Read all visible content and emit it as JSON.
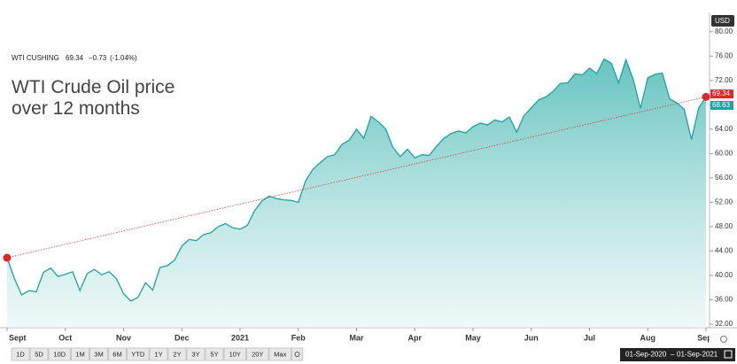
{
  "chart_data": {
    "type": "area",
    "title": "WTI Crude Oil price over 12 months",
    "instrument": "WTI CUSHING",
    "last": "69.34",
    "change": "−0.73",
    "change_pct": "(-1.04%)",
    "currency": "USD",
    "color": "#1aa3a0",
    "categories": [
      "Sept",
      null,
      null,
      null,
      null,
      null,
      null,
      null,
      "Oct",
      null,
      null,
      null,
      null,
      null,
      null,
      null,
      "Nov",
      null,
      null,
      null,
      null,
      null,
      null,
      null,
      "Dec",
      null,
      null,
      null,
      null,
      null,
      null,
      null,
      "2021",
      null,
      null,
      null,
      null,
      null,
      null,
      null,
      "Feb",
      null,
      null,
      null,
      null,
      null,
      null,
      null,
      "Mar",
      null,
      null,
      null,
      null,
      null,
      null,
      null,
      "Apr",
      null,
      null,
      null,
      null,
      null,
      null,
      null,
      "May",
      null,
      null,
      null,
      null,
      null,
      null,
      null,
      "Jun",
      null,
      null,
      null,
      null,
      null,
      null,
      null,
      "Jul",
      null,
      null,
      null,
      null,
      null,
      null,
      null,
      "Aug",
      null,
      null,
      null,
      null,
      null,
      null,
      null,
      "Sept"
    ],
    "values": [
      42.9,
      39.5,
      36.8,
      37.5,
      37.3,
      40.5,
      41.2,
      39.8,
      40.2,
      40.6,
      37.5,
      40.3,
      41.0,
      40.1,
      40.6,
      39.5,
      37.0,
      35.8,
      36.4,
      38.8,
      37.6,
      41.3,
      41.6,
      42.5,
      44.8,
      45.9,
      45.7,
      46.7,
      47.0,
      48.0,
      48.5,
      47.8,
      47.6,
      48.2,
      50.6,
      52.2,
      53.0,
      52.6,
      52.4,
      52.3,
      52.0,
      55.5,
      57.4,
      58.5,
      59.5,
      59.8,
      61.5,
      62.2,
      64.0,
      62.5,
      66.1,
      65.2,
      64.0,
      61.0,
      59.5,
      60.7,
      59.3,
      59.8,
      59.7,
      61.2,
      62.5,
      63.3,
      63.7,
      63.4,
      64.4,
      65.0,
      64.7,
      65.5,
      65.2,
      66.0,
      63.5,
      66.2,
      67.5,
      68.8,
      69.3,
      70.2,
      71.5,
      71.6,
      73.1,
      72.9,
      74.0,
      73.1,
      75.5,
      74.8,
      71.6,
      75.4,
      72.2,
      67.4,
      72.4,
      73.0,
      73.2,
      69.0,
      68.3,
      67.3,
      62.3,
      67.5,
      69.3
    ],
    "ylim": [
      32,
      82
    ],
    "yticks": [
      {
        "value": 32,
        "label": "32.00"
      },
      {
        "value": 36,
        "label": "36.00"
      },
      {
        "value": 40,
        "label": "40.00"
      },
      {
        "value": 44,
        "label": "44.00"
      },
      {
        "value": 48,
        "label": "48.00"
      },
      {
        "value": 52,
        "label": "52.00"
      },
      {
        "value": 56,
        "label": "56.00"
      },
      {
        "value": 60,
        "label": "60.00"
      },
      {
        "value": 64,
        "label": "64.00"
      },
      {
        "value": 68,
        "label": "68.00"
      },
      {
        "value": 72,
        "label": "72.00"
      },
      {
        "value": 76,
        "label": "76.00"
      },
      {
        "value": 80,
        "label": "80.00"
      }
    ],
    "price_tags": [
      {
        "value": 69.34,
        "label": "69.34",
        "color": "#e0262b"
      },
      {
        "value": 68.63,
        "label": "68.63",
        "color": "#1aa3a0"
      }
    ],
    "ranges": [
      "1D",
      "5D",
      "10D",
      "1M",
      "3M",
      "6M",
      "YTD",
      "1Y",
      "2Y",
      "3Y",
      "5Y",
      "10Y",
      "20Y",
      "Max"
    ],
    "date_from": "01-Sep-2020",
    "date_sep": "–",
    "date_to": "01-Sep-2021"
  }
}
